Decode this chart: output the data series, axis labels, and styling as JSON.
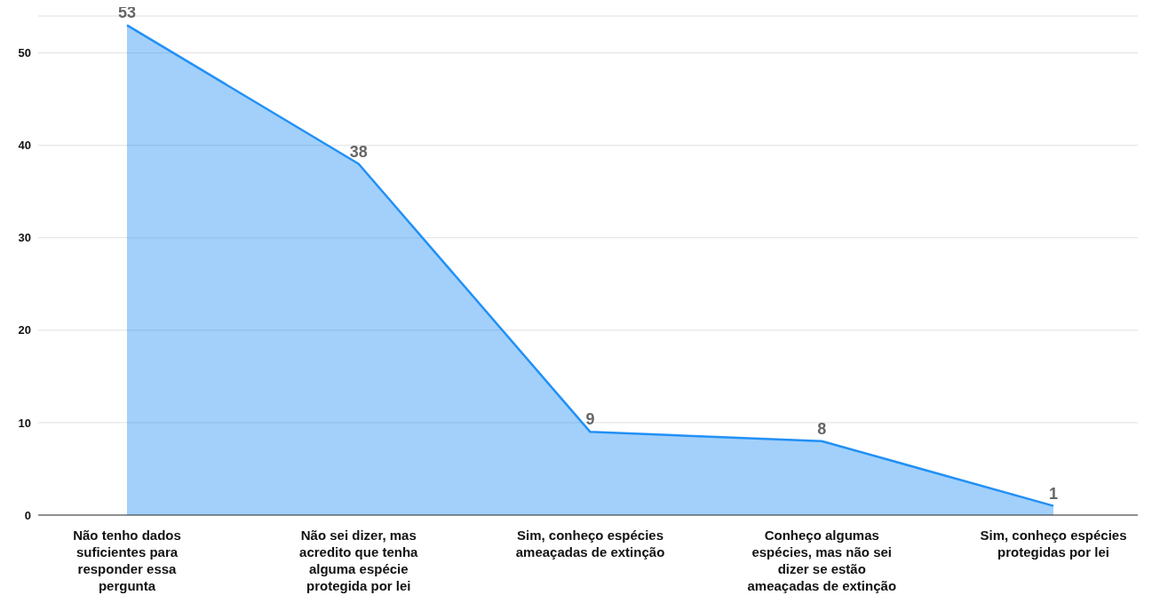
{
  "chart_data": {
    "type": "area",
    "categories": [
      "Não tenho dados suficientes para responder essa pergunta",
      "Não sei dizer, mas acredito que tenha alguma espécie protegida por lei",
      "Sim, conheço espécies ameaçadas de extinção",
      "Conheço algumas espécies, mas não sei dizer se estão ameaçadas de extinção",
      "Sim, conheço espécies protegidas por lei"
    ],
    "values": [
      53,
      38,
      9,
      8,
      1
    ],
    "color": "#2290f5",
    "ylim": [
      0,
      54
    ],
    "yticks": [
      0,
      10,
      20,
      30,
      40,
      50
    ],
    "grid": "y",
    "data_labels": true,
    "legend": false
  }
}
